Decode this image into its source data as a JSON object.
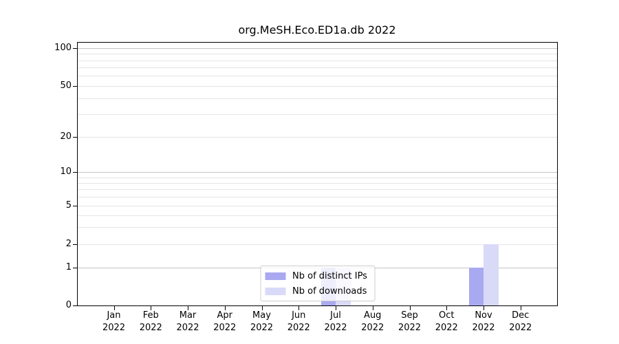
{
  "chart_data": {
    "type": "bar",
    "title": "org.MeSH.Eco.ED1a.db 2022",
    "categories": [
      "Jan 2022",
      "Feb 2022",
      "Mar 2022",
      "Apr 2022",
      "May 2022",
      "Jun 2022",
      "Jul 2022",
      "Aug 2022",
      "Sep 2022",
      "Oct 2022",
      "Nov 2022",
      "Dec 2022"
    ],
    "series": [
      {
        "name": "Nb of distinct IPs",
        "color": "#a9a9f1",
        "values": [
          0,
          0,
          0,
          0,
          0,
          0,
          1,
          0,
          0,
          0,
          1,
          0
        ]
      },
      {
        "name": "Nb of downloads",
        "color": "#d9d9f8",
        "values": [
          0,
          0,
          0,
          0,
          0,
          0,
          1,
          0,
          0,
          0,
          2,
          0
        ]
      }
    ],
    "xlabel": "",
    "ylabel": "",
    "ylim": [
      0,
      100
    ],
    "yscale": "log-like with 0 baseline",
    "y_tick_labels": [
      "100",
      "50",
      "20",
      "10",
      "5",
      "2",
      "1",
      "0"
    ],
    "grid": true,
    "legend_position": "lower center",
    "colors": {
      "spine": "#000000",
      "text": "#000000",
      "grid_major": "#c4c4c4",
      "grid_minor": "#e4e4e4",
      "legend_border": "#cccccc",
      "legend_bg": "rgba(255,255,255,0.8)"
    }
  }
}
